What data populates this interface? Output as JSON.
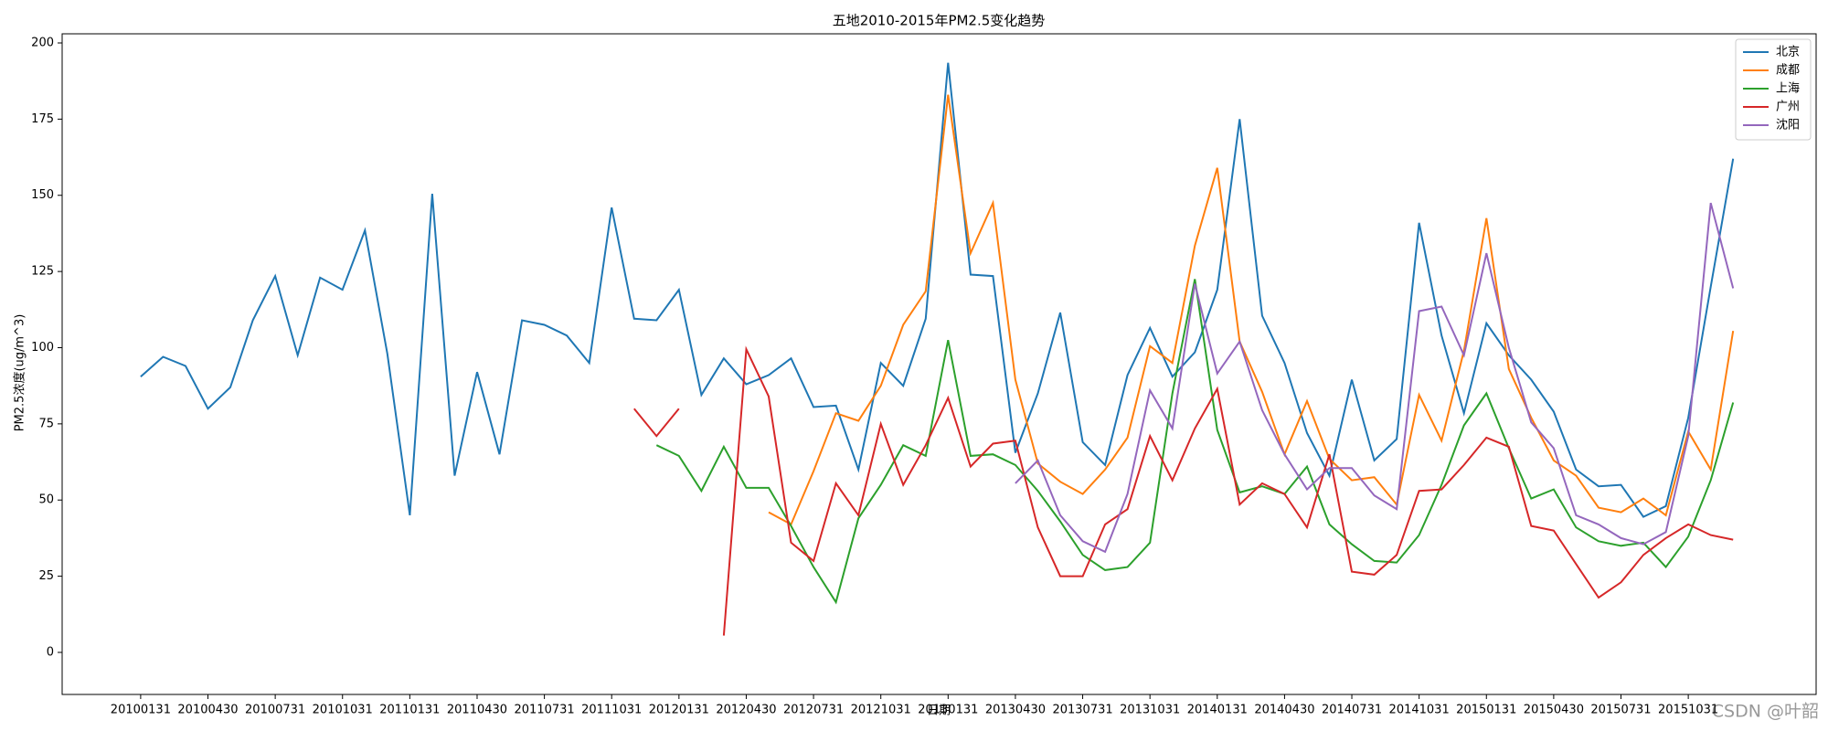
{
  "chart_data": {
    "type": "line",
    "title": "五地2010-2015年PM2.5变化趋势",
    "x_label": "日期",
    "y_label": "PM2.5浓度(ug/m^3)",
    "watermark": "CSDN @叶韶",
    "categories": [
      "20100131",
      null,
      null,
      "20100430",
      null,
      null,
      "20100731",
      null,
      null,
      "20101031",
      null,
      null,
      "20110131",
      null,
      null,
      "20110430",
      null,
      null,
      "20110731",
      null,
      null,
      "20111031",
      null,
      null,
      "20120131",
      null,
      null,
      "20120430",
      null,
      null,
      "20120731",
      null,
      null,
      "20121031",
      null,
      null,
      "20130131",
      null,
      null,
      "20130430",
      null,
      null,
      "20130731",
      null,
      null,
      "20131031",
      null,
      null,
      "20140131",
      null,
      null,
      "20140430",
      null,
      null,
      "20140731",
      null,
      null,
      "20141031",
      null,
      null,
      "20150131",
      null,
      null,
      "20150430",
      null,
      null,
      "20150731",
      null,
      null,
      "20151031",
      null,
      null
    ],
    "ylim": [
      -13.8,
      203
    ],
    "yticks": [
      0,
      25,
      50,
      75,
      100,
      125,
      150,
      175,
      200
    ],
    "legend": "upper right",
    "series": [
      {
        "name": "北京",
        "color": "#1f77b4",
        "values": [
          90.5,
          97,
          94,
          80,
          87,
          109,
          123.5,
          97.5,
          123,
          119,
          138.5,
          98,
          45,
          150.5,
          58,
          92,
          65,
          109,
          107.5,
          104,
          95,
          146,
          109.5,
          109,
          119,
          84.5,
          96.5,
          88,
          91,
          96.5,
          80.5,
          81,
          60,
          95,
          87.5,
          109.5,
          193.5,
          124,
          123.5,
          65.5,
          85,
          111.5,
          69,
          61.5,
          91,
          106.5,
          90.5,
          98.5,
          119,
          175,
          110.5,
          95,
          72,
          58,
          89.5,
          63,
          70,
          141,
          104,
          78.5,
          108,
          97.5,
          89.5,
          79,
          60,
          54.5,
          55,
          44.5,
          48,
          77,
          120,
          162
        ]
      },
      {
        "name": "成都",
        "color": "#ff7f0e",
        "values": [
          null,
          null,
          null,
          null,
          null,
          null,
          null,
          null,
          null,
          null,
          null,
          null,
          null,
          null,
          null,
          null,
          null,
          null,
          null,
          null,
          null,
          null,
          null,
          null,
          null,
          null,
          null,
          null,
          46,
          42,
          59.5,
          78.5,
          76,
          87.5,
          107.5,
          118.5,
          183,
          131,
          147.5,
          89.5,
          62,
          56,
          52,
          60,
          70.5,
          100.5,
          95,
          133.5,
          159,
          102,
          85.5,
          65,
          82.5,
          63.5,
          56.5,
          57.5,
          48.5,
          84.5,
          69.5,
          99,
          142.5,
          93,
          77,
          63,
          58,
          47.5,
          46,
          50.5,
          45,
          72.5,
          60,
          105.5
        ]
      },
      {
        "name": "上海",
        "color": "#2ca02c",
        "values": [
          null,
          null,
          null,
          null,
          null,
          null,
          null,
          null,
          null,
          null,
          null,
          null,
          null,
          null,
          null,
          null,
          null,
          null,
          null,
          null,
          null,
          null,
          null,
          68,
          64.5,
          53,
          67.5,
          54,
          54,
          41.5,
          28,
          16.5,
          44,
          55,
          68,
          64.5,
          102.5,
          64.5,
          65,
          61.5,
          53,
          43,
          32,
          27,
          28,
          36,
          85,
          122.5,
          73,
          52.5,
          54.5,
          52,
          61,
          42,
          35.5,
          30,
          29.5,
          38.5,
          55,
          74.5,
          85,
          67,
          50.5,
          53.5,
          41,
          36.5,
          35,
          36,
          28,
          38,
          56.5,
          82
        ]
      },
      {
        "name": "广州",
        "color": "#d62728",
        "values": [
          null,
          null,
          null,
          null,
          null,
          null,
          null,
          null,
          null,
          null,
          null,
          null,
          null,
          null,
          null,
          null,
          null,
          null,
          null,
          null,
          null,
          null,
          80,
          71,
          80,
          null,
          5.5,
          99.5,
          84,
          36,
          30,
          55.5,
          45,
          75,
          55,
          68,
          83.5,
          61,
          68.5,
          69.5,
          41,
          25,
          25,
          42,
          47,
          71,
          56.5,
          73.5,
          86.5,
          48.5,
          55.5,
          52,
          41,
          65,
          26.5,
          25.5,
          32,
          53,
          53.5,
          61.5,
          70.5,
          67.5,
          41.5,
          40,
          29,
          18,
          23,
          32,
          37.5,
          42,
          38.5,
          37
        ]
      },
      {
        "name": "沈阳",
        "color": "#9467bd",
        "values": [
          null,
          null,
          null,
          null,
          null,
          null,
          null,
          null,
          null,
          null,
          null,
          null,
          null,
          null,
          null,
          null,
          null,
          null,
          null,
          null,
          null,
          null,
          null,
          null,
          null,
          null,
          null,
          null,
          null,
          null,
          null,
          null,
          null,
          null,
          null,
          null,
          null,
          null,
          null,
          55.5,
          63,
          45,
          36.5,
          33,
          52,
          86,
          73.5,
          121,
          91.5,
          102,
          79.5,
          65,
          53.5,
          60.5,
          60.5,
          51.5,
          47,
          112,
          113.5,
          97.5,
          131,
          100,
          75.5,
          67,
          45,
          42,
          37.5,
          35.5,
          39.5,
          71,
          147.5,
          119.5
        ]
      }
    ]
  }
}
